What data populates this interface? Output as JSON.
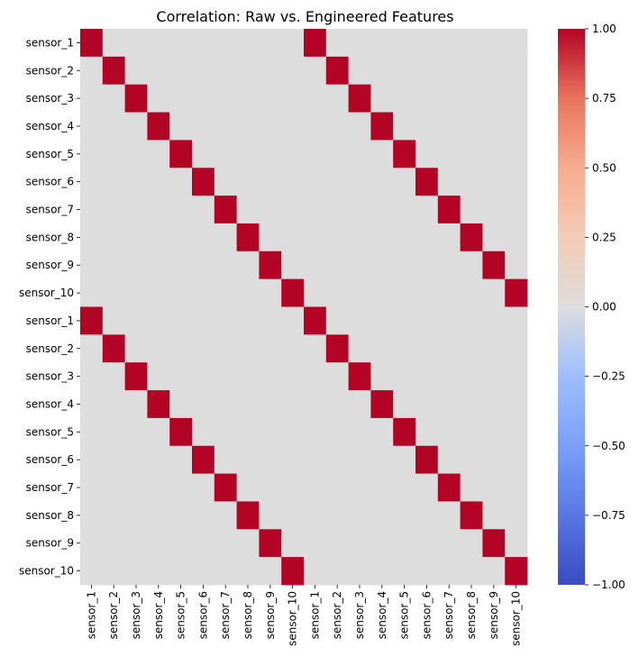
{
  "chart_data": {
    "type": "heatmap",
    "title": "Correlation: Raw vs. Engineered Features",
    "xlabel": "",
    "ylabel": "",
    "row_labels": [
      "sensor_1",
      "sensor_2",
      "sensor_3",
      "sensor_4",
      "sensor_5",
      "sensor_6",
      "sensor_7",
      "sensor_8",
      "sensor_9",
      "sensor_10",
      "sensor_1",
      "sensor_2",
      "sensor_3",
      "sensor_4",
      "sensor_5",
      "sensor_6",
      "sensor_7",
      "sensor_8",
      "sensor_9",
      "sensor_10"
    ],
    "col_labels": [
      "sensor_1",
      "sensor_2",
      "sensor_3",
      "sensor_4",
      "sensor_5",
      "sensor_6",
      "sensor_7",
      "sensor_8",
      "sensor_9",
      "sensor_10",
      "sensor_1",
      "sensor_2",
      "sensor_3",
      "sensor_4",
      "sensor_5",
      "sensor_6",
      "sensor_7",
      "sensor_8",
      "sensor_9",
      "sensor_10"
    ],
    "values": [
      [
        1,
        0,
        0,
        0,
        0,
        0,
        0,
        0,
        0,
        0,
        1,
        0,
        0,
        0,
        0,
        0,
        0,
        0,
        0,
        0
      ],
      [
        0,
        1,
        0,
        0,
        0,
        0,
        0,
        0,
        0,
        0,
        0,
        1,
        0,
        0,
        0,
        0,
        0,
        0,
        0,
        0
      ],
      [
        0,
        0,
        1,
        0,
        0,
        0,
        0,
        0,
        0,
        0,
        0,
        0,
        1,
        0,
        0,
        0,
        0,
        0,
        0,
        0
      ],
      [
        0,
        0,
        0,
        1,
        0,
        0,
        0,
        0,
        0,
        0,
        0,
        0,
        0,
        1,
        0,
        0,
        0,
        0,
        0,
        0
      ],
      [
        0,
        0,
        0,
        0,
        1,
        0,
        0,
        0,
        0,
        0,
        0,
        0,
        0,
        0,
        1,
        0,
        0,
        0,
        0,
        0
      ],
      [
        0,
        0,
        0,
        0,
        0,
        1,
        0,
        0,
        0,
        0,
        0,
        0,
        0,
        0,
        0,
        1,
        0,
        0,
        0,
        0
      ],
      [
        0,
        0,
        0,
        0,
        0,
        0,
        1,
        0,
        0,
        0,
        0,
        0,
        0,
        0,
        0,
        0,
        1,
        0,
        0,
        0
      ],
      [
        0,
        0,
        0,
        0,
        0,
        0,
        0,
        1,
        0,
        0,
        0,
        0,
        0,
        0,
        0,
        0,
        0,
        1,
        0,
        0
      ],
      [
        0,
        0,
        0,
        0,
        0,
        0,
        0,
        0,
        1,
        0,
        0,
        0,
        0,
        0,
        0,
        0,
        0,
        0,
        1,
        0
      ],
      [
        0,
        0,
        0,
        0,
        0,
        0,
        0,
        0,
        0,
        1,
        0,
        0,
        0,
        0,
        0,
        0,
        0,
        0,
        0,
        1
      ],
      [
        1,
        0,
        0,
        0,
        0,
        0,
        0,
        0,
        0,
        0,
        1,
        0,
        0,
        0,
        0,
        0,
        0,
        0,
        0,
        0
      ],
      [
        0,
        1,
        0,
        0,
        0,
        0,
        0,
        0,
        0,
        0,
        0,
        1,
        0,
        0,
        0,
        0,
        0,
        0,
        0,
        0
      ],
      [
        0,
        0,
        1,
        0,
        0,
        0,
        0,
        0,
        0,
        0,
        0,
        0,
        1,
        0,
        0,
        0,
        0,
        0,
        0,
        0
      ],
      [
        0,
        0,
        0,
        1,
        0,
        0,
        0,
        0,
        0,
        0,
        0,
        0,
        0,
        1,
        0,
        0,
        0,
        0,
        0,
        0
      ],
      [
        0,
        0,
        0,
        0,
        1,
        0,
        0,
        0,
        0,
        0,
        0,
        0,
        0,
        0,
        1,
        0,
        0,
        0,
        0,
        0
      ],
      [
        0,
        0,
        0,
        0,
        0,
        1,
        0,
        0,
        0,
        0,
        0,
        0,
        0,
        0,
        0,
        1,
        0,
        0,
        0,
        0
      ],
      [
        0,
        0,
        0,
        0,
        0,
        0,
        1,
        0,
        0,
        0,
        0,
        0,
        0,
        0,
        0,
        0,
        1,
        0,
        0,
        0
      ],
      [
        0,
        0,
        0,
        0,
        0,
        0,
        0,
        1,
        0,
        0,
        0,
        0,
        0,
        0,
        0,
        0,
        0,
        1,
        0,
        0
      ],
      [
        0,
        0,
        0,
        0,
        0,
        0,
        0,
        0,
        1,
        0,
        0,
        0,
        0,
        0,
        0,
        0,
        0,
        0,
        1,
        0
      ],
      [
        0,
        0,
        0,
        0,
        0,
        0,
        0,
        0,
        0,
        1,
        0,
        0,
        0,
        0,
        0,
        0,
        0,
        0,
        0,
        1
      ]
    ],
    "colorbar": {
      "colormap": "coolwarm",
      "vmin": -1.0,
      "vmax": 1.0,
      "ticks": [
        1.0,
        0.75,
        0.5,
        0.25,
        0.0,
        -0.25,
        -0.5,
        -0.75,
        -1.0
      ],
      "tick_labels": [
        "1.00",
        "0.75",
        "0.50",
        "0.25",
        "0.00",
        "−0.25",
        "−0.50",
        "−0.75",
        "−1.00"
      ]
    },
    "grid": false,
    "legend": "colorbar-right"
  }
}
